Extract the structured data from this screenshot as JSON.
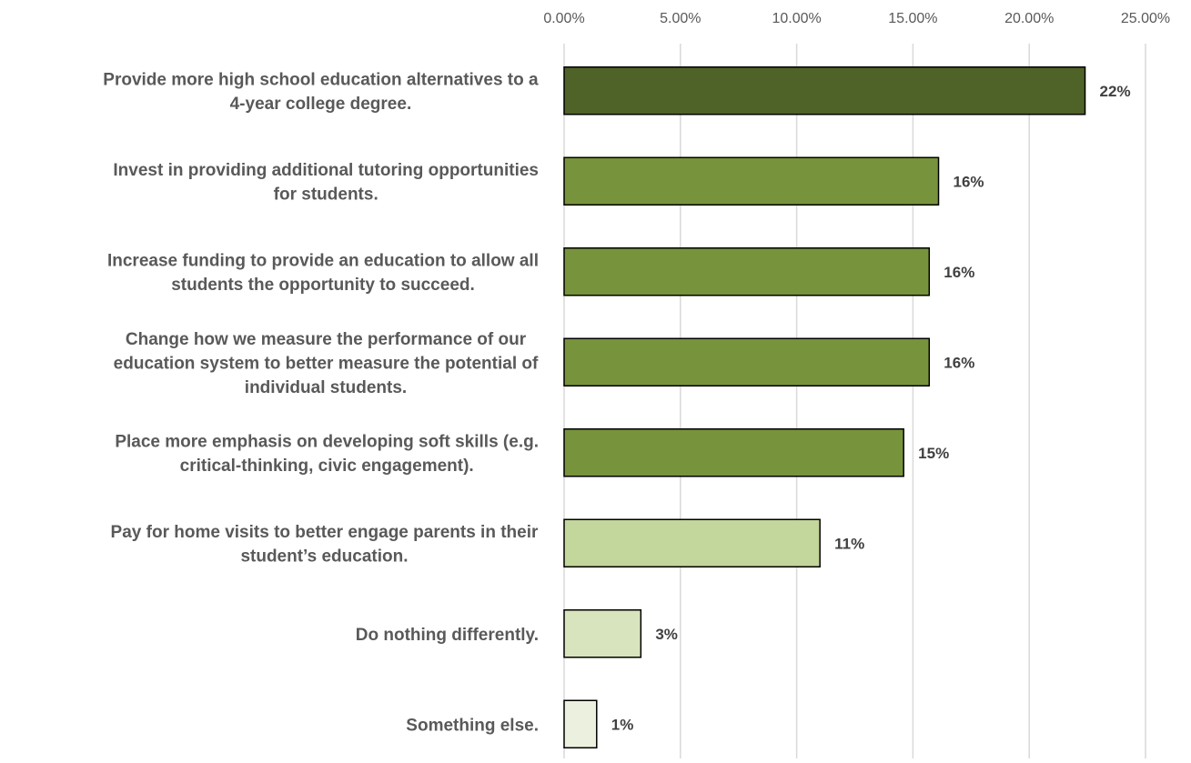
{
  "chart_data": {
    "type": "bar",
    "orientation": "horizontal",
    "title": "",
    "xlabel": "",
    "ylabel": "",
    "xlim": [
      0,
      0.25
    ],
    "x_ticks": [
      "0.00%",
      "5.00%",
      "10.00%",
      "15.00%",
      "20.00%",
      "25.00%"
    ],
    "x_axis_position": "top",
    "grid": true,
    "legend": "none",
    "categories": [
      [
        "Provide more high school education alternatives to a",
        "4-year college degree."
      ],
      [
        "Invest in providing additional tutoring opportunities",
        "for students."
      ],
      [
        "Increase funding to provide an education to allow all",
        "students the opportunity to succeed."
      ],
      [
        "Change how we measure the performance of our",
        "education system to better measure the potential of",
        "individual students."
      ],
      [
        "Place more emphasis on developing soft skills (e.g.",
        "critical-thinking, civic engagement)."
      ],
      [
        "Pay for home visits to better engage parents in their",
        "student’s education."
      ],
      [
        "Do nothing differently."
      ],
      [
        "Something else."
      ]
    ],
    "values": [
      0.224,
      0.161,
      0.157,
      0.157,
      0.146,
      0.11,
      0.033,
      0.014
    ],
    "data_labels": [
      "22%",
      "16%",
      "16%",
      "16%",
      "15%",
      "11%",
      "3%",
      "1%"
    ],
    "bar_colors": [
      "#4f6228",
      "#77933c",
      "#77933c",
      "#77933c",
      "#77933c",
      "#c3d69b",
      "#d7e4bd",
      "#ebf1de"
    ],
    "bar_border_color": "#000000",
    "grid_color": "#d9d9d9"
  }
}
